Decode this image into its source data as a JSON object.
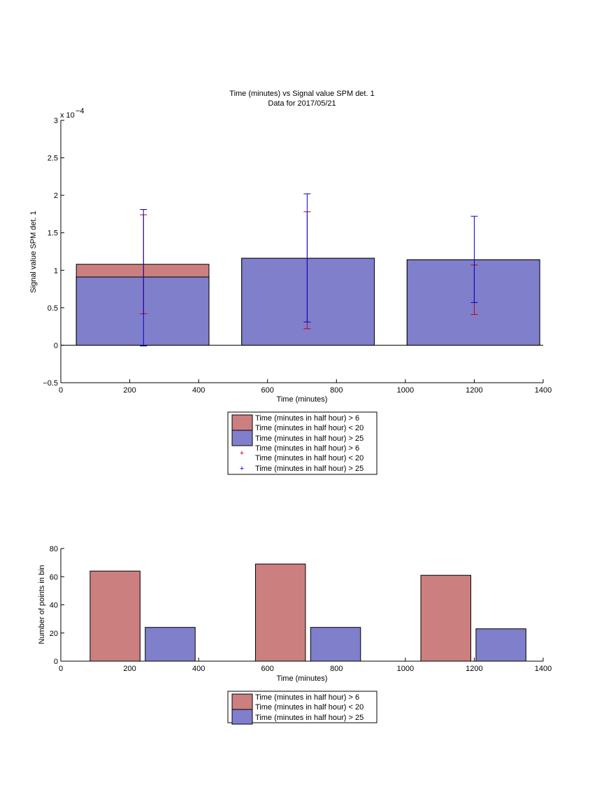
{
  "chart_data": [
    {
      "type": "bar",
      "title": "Time (minutes) vs Signal value SPM det. 1",
      "subtitle": "Data for 2017/05/21",
      "xlabel": "Time (minutes)",
      "ylabel": "Signal value SPM det. 1",
      "y_exponent_label": "x 10",
      "y_exponent_power": "−4",
      "xlim": [
        0,
        1400
      ],
      "ylim": [
        -0.5,
        3
      ],
      "xticks": [
        "0",
        "200",
        "400",
        "600",
        "800",
        "1000",
        "1200",
        "1400"
      ],
      "yticks": [
        "−0.5",
        "0",
        "0.5",
        "1",
        "1.5",
        "2",
        "2.5",
        "3"
      ],
      "bars": [
        {
          "x_start": 45,
          "x_end": 430,
          "red": 1.08,
          "blue": 0.91
        },
        {
          "x_start": 525,
          "x_end": 910,
          "red": 1.16,
          "blue": 1.16
        },
        {
          "x_start": 1005,
          "x_end": 1390,
          "red": 1.14,
          "blue": 1.14
        }
      ],
      "errorbars_red": [
        {
          "x": 240,
          "low": 0.42,
          "high": 1.74
        },
        {
          "x": 715,
          "low": 0.22,
          "high": 1.78
        },
        {
          "x": 1200,
          "low": 0.41,
          "high": 1.07
        }
      ],
      "errorbars_blue": [
        {
          "x": 240,
          "low": -0.01,
          "high": 1.81
        },
        {
          "x": 715,
          "low": 0.31,
          "high": 2.02
        },
        {
          "x": 1200,
          "low": 0.57,
          "high": 1.72
        }
      ],
      "legend": [
        "Time (minutes in half hour) > 6",
        "Time (minutes in half hour) < 20",
        "Time (minutes in half hour) > 25",
        "Time (minutes in half hour) > 6",
        "Time (minutes in half hour) < 20",
        "Time (minutes in half hour) > 25"
      ]
    },
    {
      "type": "bar",
      "xlabel": "Time (minutes)",
      "ylabel": "Number of points in bin",
      "xlim": [
        0,
        1400
      ],
      "ylim": [
        0,
        80
      ],
      "xticks": [
        "0",
        "200",
        "400",
        "600",
        "800",
        "1000",
        "1200",
        "1400"
      ],
      "yticks": [
        "0",
        "20",
        "40",
        "60",
        "80"
      ],
      "bars": [
        {
          "x_start": 85,
          "x_end": 230,
          "value": 64,
          "series": "red"
        },
        {
          "x_start": 245,
          "x_end": 390,
          "value": 24,
          "series": "blue"
        },
        {
          "x_start": 565,
          "x_end": 710,
          "value": 69,
          "series": "red"
        },
        {
          "x_start": 725,
          "x_end": 870,
          "value": 24,
          "series": "blue"
        },
        {
          "x_start": 1045,
          "x_end": 1190,
          "value": 61,
          "series": "red"
        },
        {
          "x_start": 1205,
          "x_end": 1350,
          "value": 23,
          "series": "blue"
        }
      ],
      "legend": [
        "Time (minutes in half hour) > 6",
        "Time (minutes in half hour) < 20",
        "Time (minutes in half hour) > 25"
      ]
    }
  ],
  "colors": {
    "red_fill": "#cc7f7f",
    "blue_fill": "#7f7fcc",
    "red_marker": "#cc0000",
    "blue_marker": "#0000cc"
  }
}
